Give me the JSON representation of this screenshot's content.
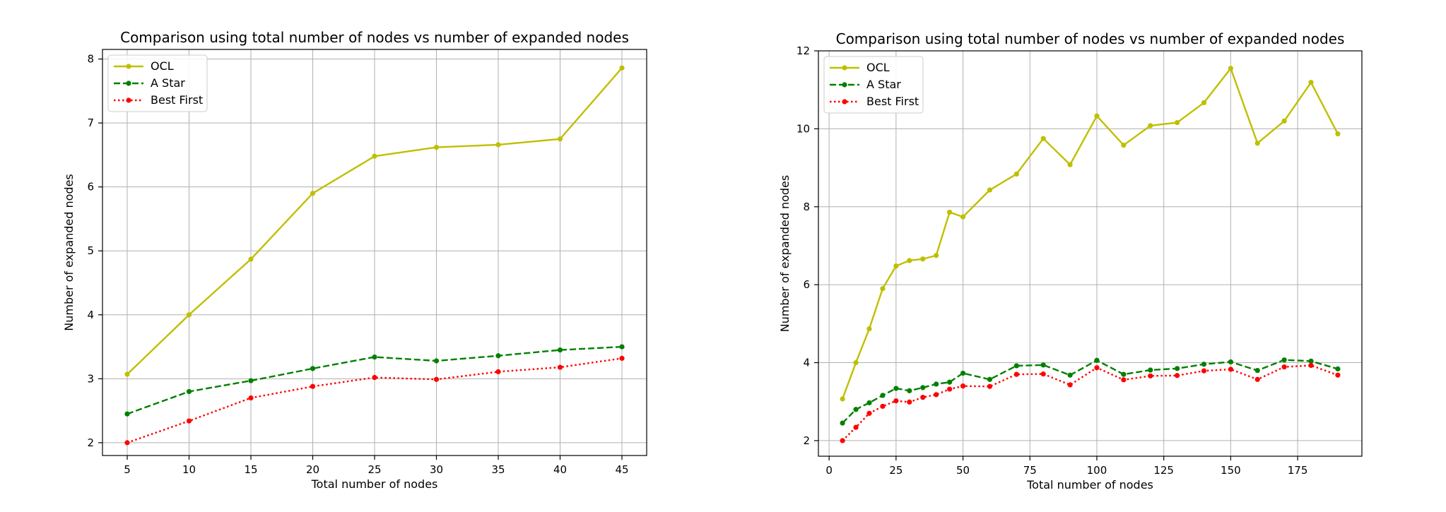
{
  "chart_data": [
    {
      "type": "line",
      "title": "Comparison using total number of nodes vs number of expanded nodes",
      "xlabel": "Total number of nodes",
      "ylabel": "Number of expanded nodes",
      "xlim": [
        3,
        47
      ],
      "ylim": [
        1.8,
        8.15
      ],
      "xticks": [
        5,
        10,
        15,
        20,
        25,
        30,
        35,
        40,
        45
      ],
      "yticks": [
        2,
        3,
        4,
        5,
        6,
        7,
        8
      ],
      "grid": true,
      "legend_position": "upper-left",
      "x": [
        5,
        10,
        15,
        20,
        25,
        30,
        35,
        40,
        45
      ],
      "series": [
        {
          "name": "OCL",
          "color": "#bfbf00",
          "style": "solid",
          "values": [
            3.07,
            4.0,
            4.87,
            5.9,
            6.48,
            6.62,
            6.66,
            6.75,
            7.86
          ]
        },
        {
          "name": "A Star",
          "color": "#008000",
          "style": "dashed",
          "values": [
            2.45,
            2.8,
            2.97,
            3.16,
            3.34,
            3.28,
            3.36,
            3.45,
            3.5
          ]
        },
        {
          "name": "Best First",
          "color": "#ff0000",
          "style": "dotted",
          "values": [
            2.0,
            2.34,
            2.7,
            2.88,
            3.02,
            2.99,
            3.11,
            3.18,
            3.32
          ]
        }
      ]
    },
    {
      "type": "line",
      "title": "Comparison using total number of nodes vs number of expanded nodes",
      "xlabel": "Total number of nodes",
      "ylabel": "Number of expanded nodes",
      "xlim": [
        -4,
        199
      ],
      "ylim": [
        1.6,
        12.0
      ],
      "xticks": [
        0,
        25,
        50,
        75,
        100,
        125,
        150,
        175
      ],
      "yticks": [
        2,
        4,
        6,
        8,
        10,
        12
      ],
      "grid": true,
      "legend_position": "upper-left",
      "x": [
        5,
        10,
        15,
        20,
        25,
        30,
        35,
        40,
        45,
        50,
        60,
        70,
        80,
        90,
        100,
        110,
        120,
        130,
        140,
        150,
        160,
        170,
        180,
        190
      ],
      "series": [
        {
          "name": "OCL",
          "color": "#bfbf00",
          "style": "solid",
          "values": [
            3.07,
            4.0,
            4.87,
            5.9,
            6.48,
            6.62,
            6.66,
            6.75,
            7.86,
            7.74,
            8.43,
            8.84,
            9.75,
            9.08,
            10.33,
            9.58,
            10.08,
            10.16,
            10.67,
            11.55,
            9.63,
            10.2,
            11.19,
            9.87
          ]
        },
        {
          "name": "A Star",
          "color": "#008000",
          "style": "dashed",
          "values": [
            2.45,
            2.8,
            2.97,
            3.16,
            3.34,
            3.28,
            3.36,
            3.45,
            3.5,
            3.73,
            3.57,
            3.92,
            3.94,
            3.68,
            4.06,
            3.7,
            3.81,
            3.85,
            3.96,
            4.02,
            3.8,
            4.07,
            4.04,
            3.84
          ]
        },
        {
          "name": "Best First",
          "color": "#ff0000",
          "style": "dotted",
          "values": [
            2.0,
            2.34,
            2.7,
            2.88,
            3.02,
            2.99,
            3.11,
            3.18,
            3.32,
            3.4,
            3.39,
            3.7,
            3.71,
            3.43,
            3.87,
            3.56,
            3.66,
            3.67,
            3.79,
            3.83,
            3.57,
            3.89,
            3.93,
            3.68
          ]
        }
      ]
    }
  ]
}
